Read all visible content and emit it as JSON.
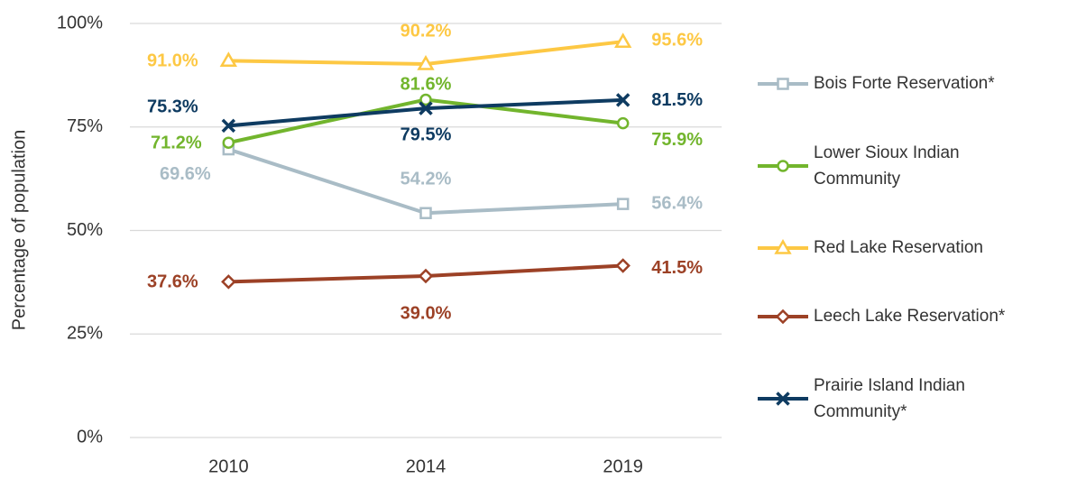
{
  "chart_data": {
    "type": "line",
    "y_label": "Percentage of population",
    "categories": [
      "2010",
      "2014",
      "2019"
    ],
    "ylim": [
      0,
      100
    ],
    "yticks": [
      {
        "value": 0,
        "label": "0%"
      },
      {
        "value": 25,
        "label": "25%"
      },
      {
        "value": 50,
        "label": "50%"
      },
      {
        "value": 75,
        "label": "75%"
      },
      {
        "value": 100,
        "label": "100%"
      }
    ],
    "grid": true,
    "legend": "right",
    "series": [
      {
        "name": "Bois Forte Reservation*",
        "color": "#a9bcc6",
        "marker": "square",
        "values": [
          69.6,
          54.2,
          56.4
        ],
        "value_labels": [
          "69.6%",
          "54.2%",
          "56.4%"
        ]
      },
      {
        "name": "Lower Sioux Indian Community",
        "color": "#72b52d",
        "marker": "circle",
        "values": [
          71.2,
          81.6,
          75.9
        ],
        "value_labels": [
          "71.2%",
          "81.6%",
          "75.9%"
        ]
      },
      {
        "name": "Red Lake Reservation",
        "color": "#fdc844",
        "marker": "triangle",
        "values": [
          91.0,
          90.2,
          95.6
        ],
        "value_labels": [
          "91.0%",
          "90.2%",
          "95.6%"
        ]
      },
      {
        "name": "Leech Lake Reservation*",
        "color": "#9c4126",
        "marker": "diamond",
        "values": [
          37.6,
          39.0,
          41.5
        ],
        "value_labels": [
          "37.6%",
          "39.0%",
          "41.5%"
        ]
      },
      {
        "name": "Prairie Island Indian Community*",
        "color": "#0e3b61",
        "marker": "x",
        "values": [
          75.3,
          79.5,
          81.5
        ],
        "value_labels": [
          "75.3%",
          "79.5%",
          "81.5%"
        ]
      }
    ]
  }
}
